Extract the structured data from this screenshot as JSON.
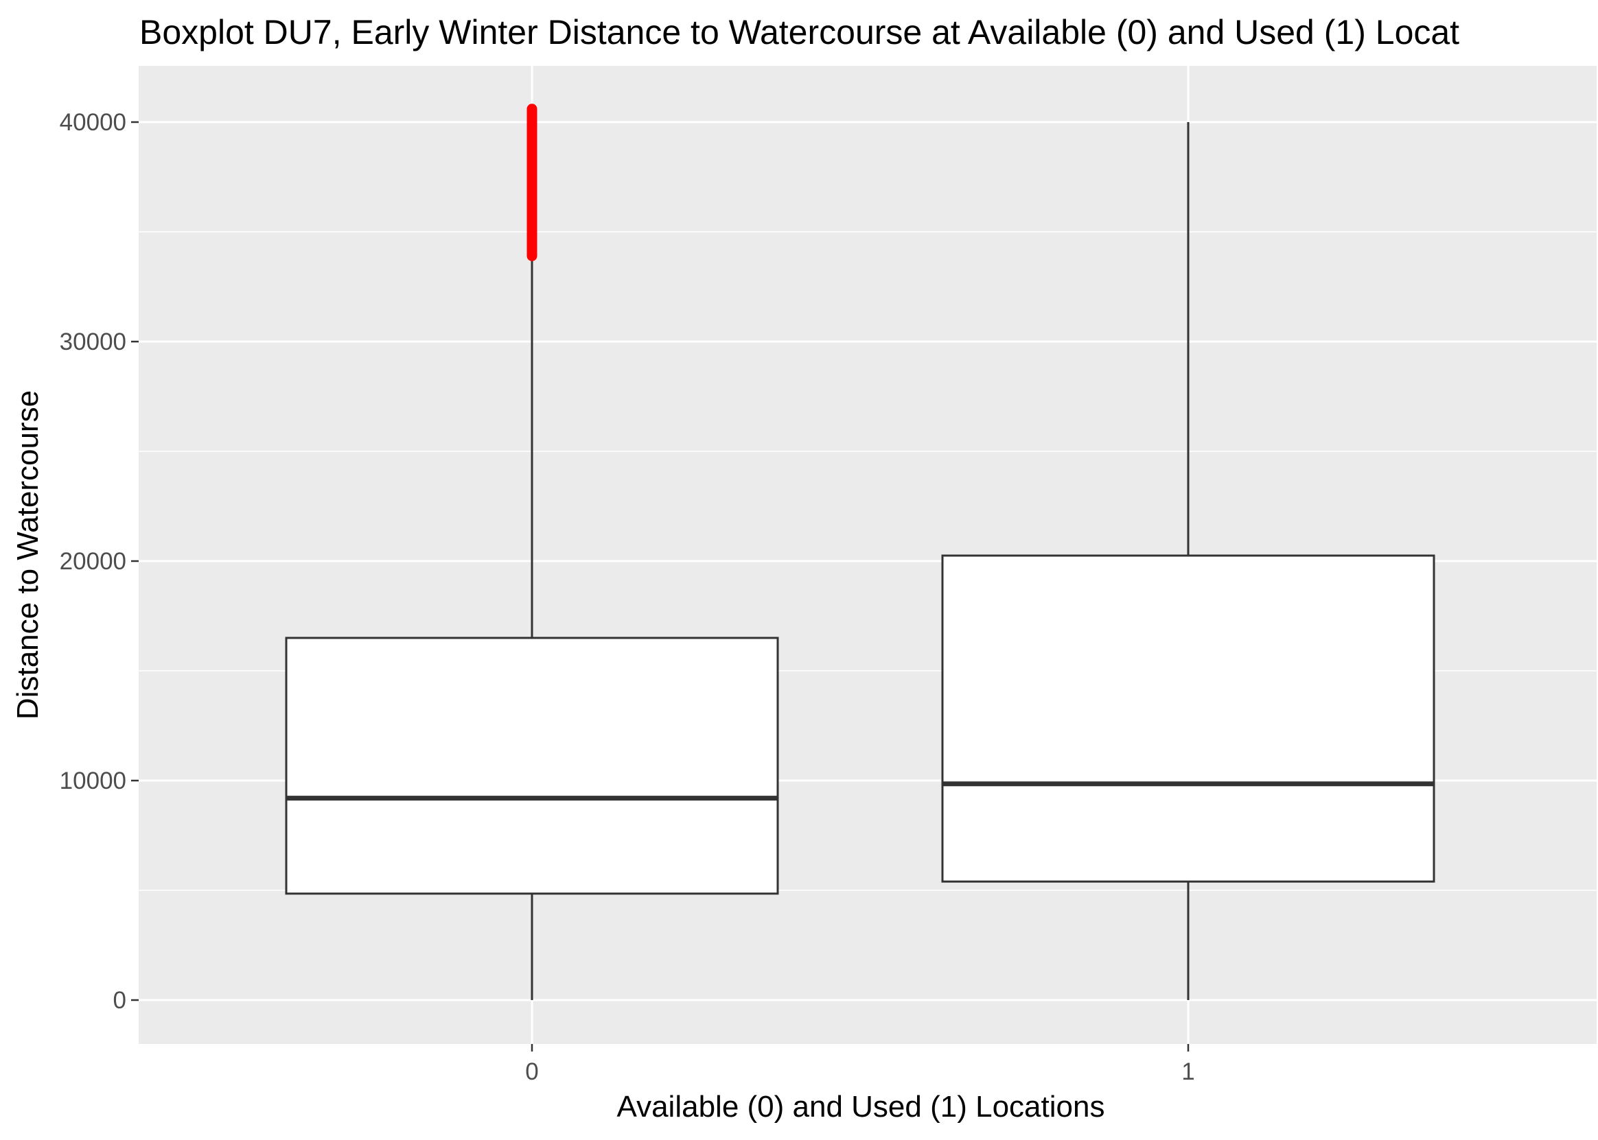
{
  "chart_data": {
    "type": "boxplot",
    "title": "Boxplot DU7, Early Winter Distance to Watercourse at Available (0) and Used (1) Locat",
    "xlabel": "Available (0) and Used (1) Locations",
    "ylabel": "Distance to Watercourse",
    "categories": [
      "0",
      "1"
    ],
    "ylim": [
      -2000,
      42500
    ],
    "yticks": [
      0,
      10000,
      20000,
      30000,
      40000
    ],
    "yticklabels": [
      "0",
      "10000",
      "20000",
      "30000",
      "40000"
    ],
    "boxes": [
      {
        "category": "0",
        "whisker_low": 0,
        "q1": 4850,
        "median": 9200,
        "q3": 16500,
        "whisker_high": 33900,
        "outliers_range": [
          33900,
          40600
        ],
        "outlier_color": "#ff0000"
      },
      {
        "category": "1",
        "whisker_low": 0,
        "q1": 5400,
        "median": 9850,
        "q3": 20250,
        "whisker_high": 40000,
        "outliers_range": null
      }
    ],
    "grid": true,
    "panel_background": "#ebebeb",
    "grid_color": "#ffffff",
    "box_fill": "#ffffff",
    "box_stroke": "#333333"
  }
}
